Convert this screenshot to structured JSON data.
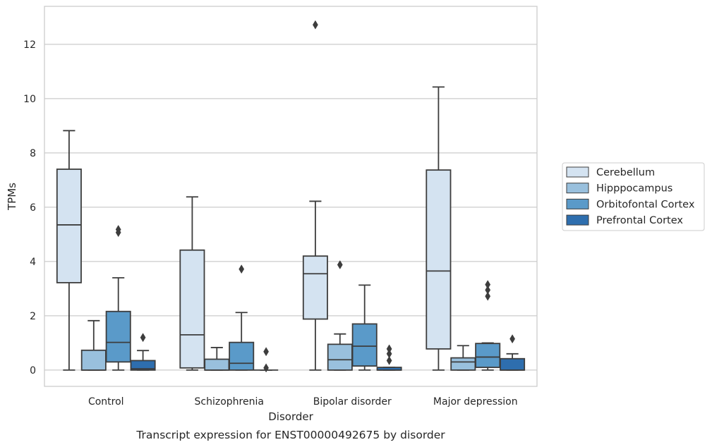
{
  "chart_data": {
    "type": "box",
    "title": "",
    "xlabel": "Disorder",
    "ylabel": "TPMs",
    "caption": "Transcript expression for ENST00000492675 by disorder",
    "ylim": [
      -0.6,
      13.4
    ],
    "yticks": [
      0,
      2,
      4,
      6,
      8,
      10,
      12
    ],
    "grid": "horizontal",
    "legend_position": "right",
    "categories": [
      "Control",
      "Schizophrenia",
      "Bipolar disorder",
      "Major depression"
    ],
    "series": [
      {
        "name": "Cerebellum",
        "color": "#d4e3f1",
        "boxes": [
          {
            "whisker_low": 0,
            "q1": 3.22,
            "median": 5.35,
            "q3": 7.4,
            "whisker_high": 8.82,
            "outliers": []
          },
          {
            "whisker_low": 0,
            "q1": 0.08,
            "median": 1.3,
            "q3": 4.42,
            "whisker_high": 6.38,
            "outliers": []
          },
          {
            "whisker_low": 0,
            "q1": 1.88,
            "median": 3.55,
            "q3": 4.2,
            "whisker_high": 6.22,
            "outliers": [
              12.72
            ]
          },
          {
            "whisker_low": 0,
            "q1": 0.78,
            "median": 3.65,
            "q3": 7.37,
            "whisker_high": 10.43,
            "outliers": []
          }
        ]
      },
      {
        "name": "Hipppocampus",
        "color": "#99c0dd",
        "boxes": [
          {
            "whisker_low": 0,
            "q1": 0,
            "median": 0,
            "q3": 0.73,
            "whisker_high": 1.82,
            "outliers": []
          },
          {
            "whisker_low": 0,
            "q1": 0,
            "median": 0,
            "q3": 0.4,
            "whisker_high": 0.83,
            "outliers": []
          },
          {
            "whisker_low": 0,
            "q1": 0,
            "median": 0.38,
            "q3": 0.95,
            "whisker_high": 1.33,
            "outliers": [
              3.88
            ]
          },
          {
            "whisker_low": 0,
            "q1": 0,
            "median": 0.3,
            "q3": 0.45,
            "whisker_high": 0.9,
            "outliers": []
          }
        ]
      },
      {
        "name": "Orbitofontal Cortex",
        "color": "#5a9ac9",
        "boxes": [
          {
            "whisker_low": 0,
            "q1": 0.3,
            "median": 1.02,
            "q3": 2.16,
            "whisker_high": 3.4,
            "outliers": [
              5.07,
              5.18
            ]
          },
          {
            "whisker_low": 0,
            "q1": 0,
            "median": 0.25,
            "q3": 1.02,
            "whisker_high": 2.12,
            "outliers": [
              3.72
            ]
          },
          {
            "whisker_low": 0,
            "q1": 0.15,
            "median": 0.88,
            "q3": 1.7,
            "whisker_high": 3.13,
            "outliers": []
          },
          {
            "whisker_low": 0,
            "q1": 0.1,
            "median": 0.48,
            "q3": 0.98,
            "whisker_high": 1.0,
            "outliers": [
              2.72,
              2.95,
              3.15
            ]
          }
        ]
      },
      {
        "name": "Prefrontal Cortex",
        "color": "#2e6eae",
        "boxes": [
          {
            "whisker_low": 0,
            "q1": 0,
            "median": 0.05,
            "q3": 0.35,
            "whisker_high": 0.72,
            "outliers": [
              1.2
            ]
          },
          {
            "whisker_low": 0,
            "q1": 0,
            "median": 0,
            "q3": 0,
            "whisker_high": 0,
            "outliers": [
              0.08,
              0.68
            ]
          },
          {
            "whisker_low": 0,
            "q1": 0,
            "median": 0,
            "q3": 0.1,
            "whisker_high": 0.1,
            "outliers": [
              0.35,
              0.6,
              0.78
            ]
          },
          {
            "whisker_low": 0,
            "q1": 0,
            "median": 0,
            "q3": 0.42,
            "whisker_high": 0.6,
            "outliers": [
              1.15
            ]
          }
        ]
      }
    ]
  }
}
